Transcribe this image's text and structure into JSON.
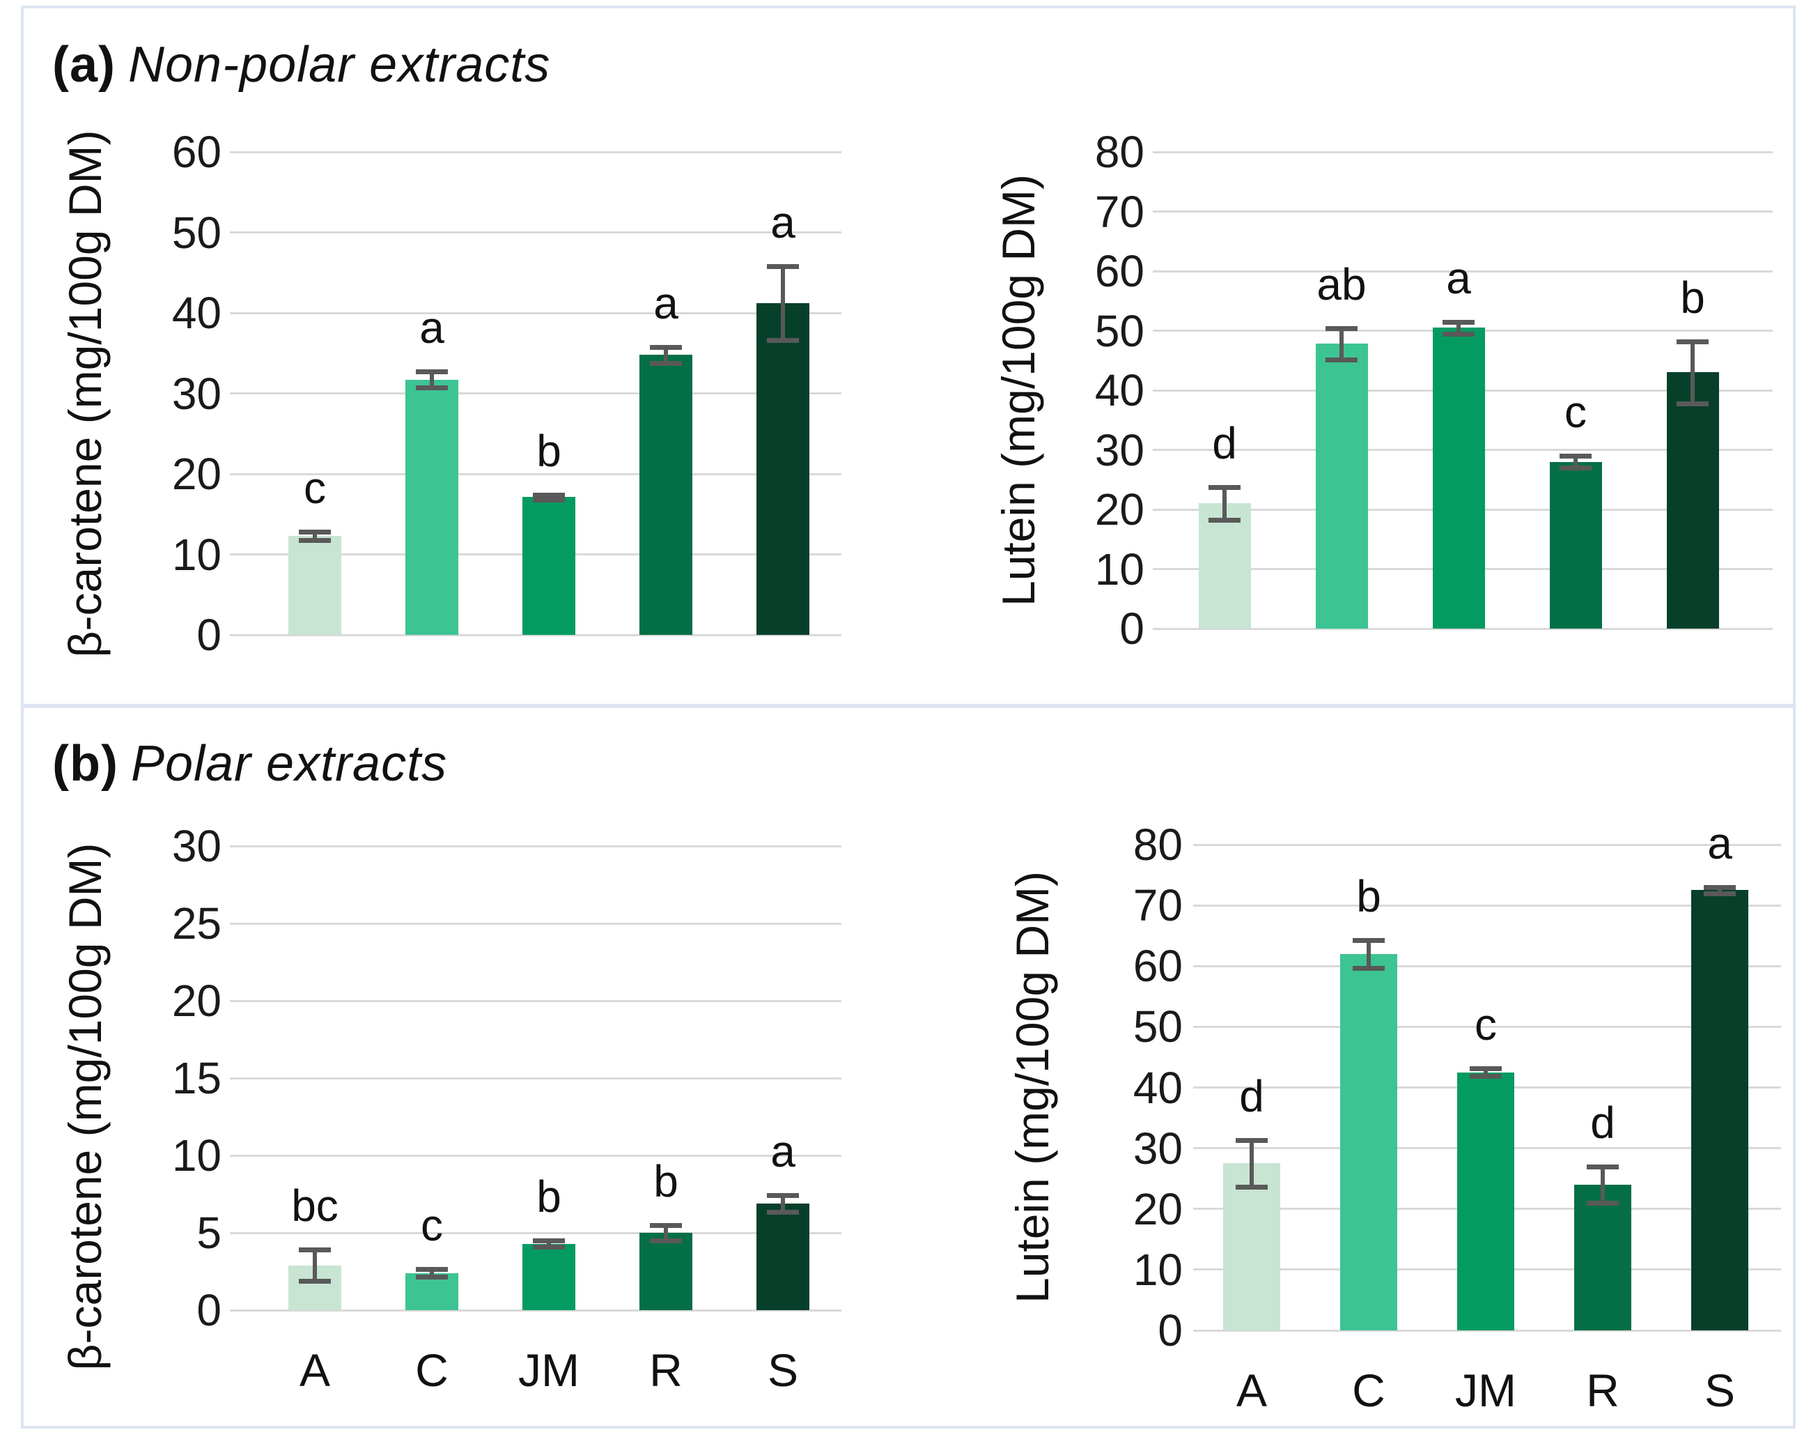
{
  "panels": [
    {
      "id": "a",
      "title_prefix": "(a)",
      "title_text": "Non-polar extracts"
    },
    {
      "id": "b",
      "title_prefix": "(b)",
      "title_text": "Polar extracts"
    }
  ],
  "frame": {
    "panel_border_color": "#dce5f1",
    "background_color": "#ffffff"
  },
  "chart_data": {
    "type": "bar",
    "categories": [
      "A",
      "C",
      "JM",
      "R",
      "S"
    ],
    "bar_colors": [
      "#c8e4d3",
      "#3dc493",
      "#049b62",
      "#046f46",
      "#07402a"
    ],
    "error_bar_color": "#595959",
    "gridline_color": "#d9d9d9",
    "legend": "none",
    "charts": [
      {
        "id": "a1",
        "panel": "(a) Non-polar extracts",
        "ylabel": "β-carotene (mg/100g DM)",
        "ylim": [
          0,
          60
        ],
        "ystep": 10,
        "grid": true,
        "show_xlabels": false,
        "values": [
          12.3,
          31.7,
          17.1,
          34.8,
          41.2
        ],
        "errors": [
          0.5,
          1.0,
          0.3,
          1.0,
          4.6
        ],
        "letters": [
          "c",
          "a",
          "b",
          "a",
          "a"
        ]
      },
      {
        "id": "a2",
        "panel": "(a) Non-polar extracts",
        "ylabel": "Lutein (mg/100g DM)",
        "ylim": [
          0,
          80
        ],
        "ystep": 10,
        "grid": true,
        "show_xlabels": false,
        "values": [
          21.0,
          47.8,
          50.5,
          28.0,
          43.0
        ],
        "errors": [
          2.8,
          2.6,
          1.0,
          1.0,
          5.2
        ],
        "letters": [
          "d",
          "ab",
          "a",
          "c",
          "b"
        ]
      },
      {
        "id": "b1",
        "panel": "(b) Polar extracts",
        "ylabel": "β-carotene (mg/100g DM)",
        "ylim": [
          0,
          30
        ],
        "ystep": 5,
        "grid": true,
        "show_xlabels": true,
        "values": [
          2.9,
          2.4,
          4.3,
          5.0,
          6.9
        ],
        "errors": [
          1.0,
          0.25,
          0.2,
          0.5,
          0.55
        ],
        "letters": [
          "bc",
          "c",
          "b",
          "b",
          "a"
        ]
      },
      {
        "id": "b2",
        "panel": "(b) Polar extracts",
        "ylabel": "Lutein (mg/100g DM)",
        "ylim": [
          0,
          80
        ],
        "ystep": 10,
        "grid": true,
        "show_xlabels": true,
        "values": [
          27.5,
          62.0,
          42.5,
          24.0,
          72.5
        ],
        "errors": [
          3.8,
          2.3,
          0.6,
          3.0,
          0.5
        ],
        "letters": [
          "d",
          "b",
          "c",
          "d",
          "a"
        ]
      }
    ]
  }
}
